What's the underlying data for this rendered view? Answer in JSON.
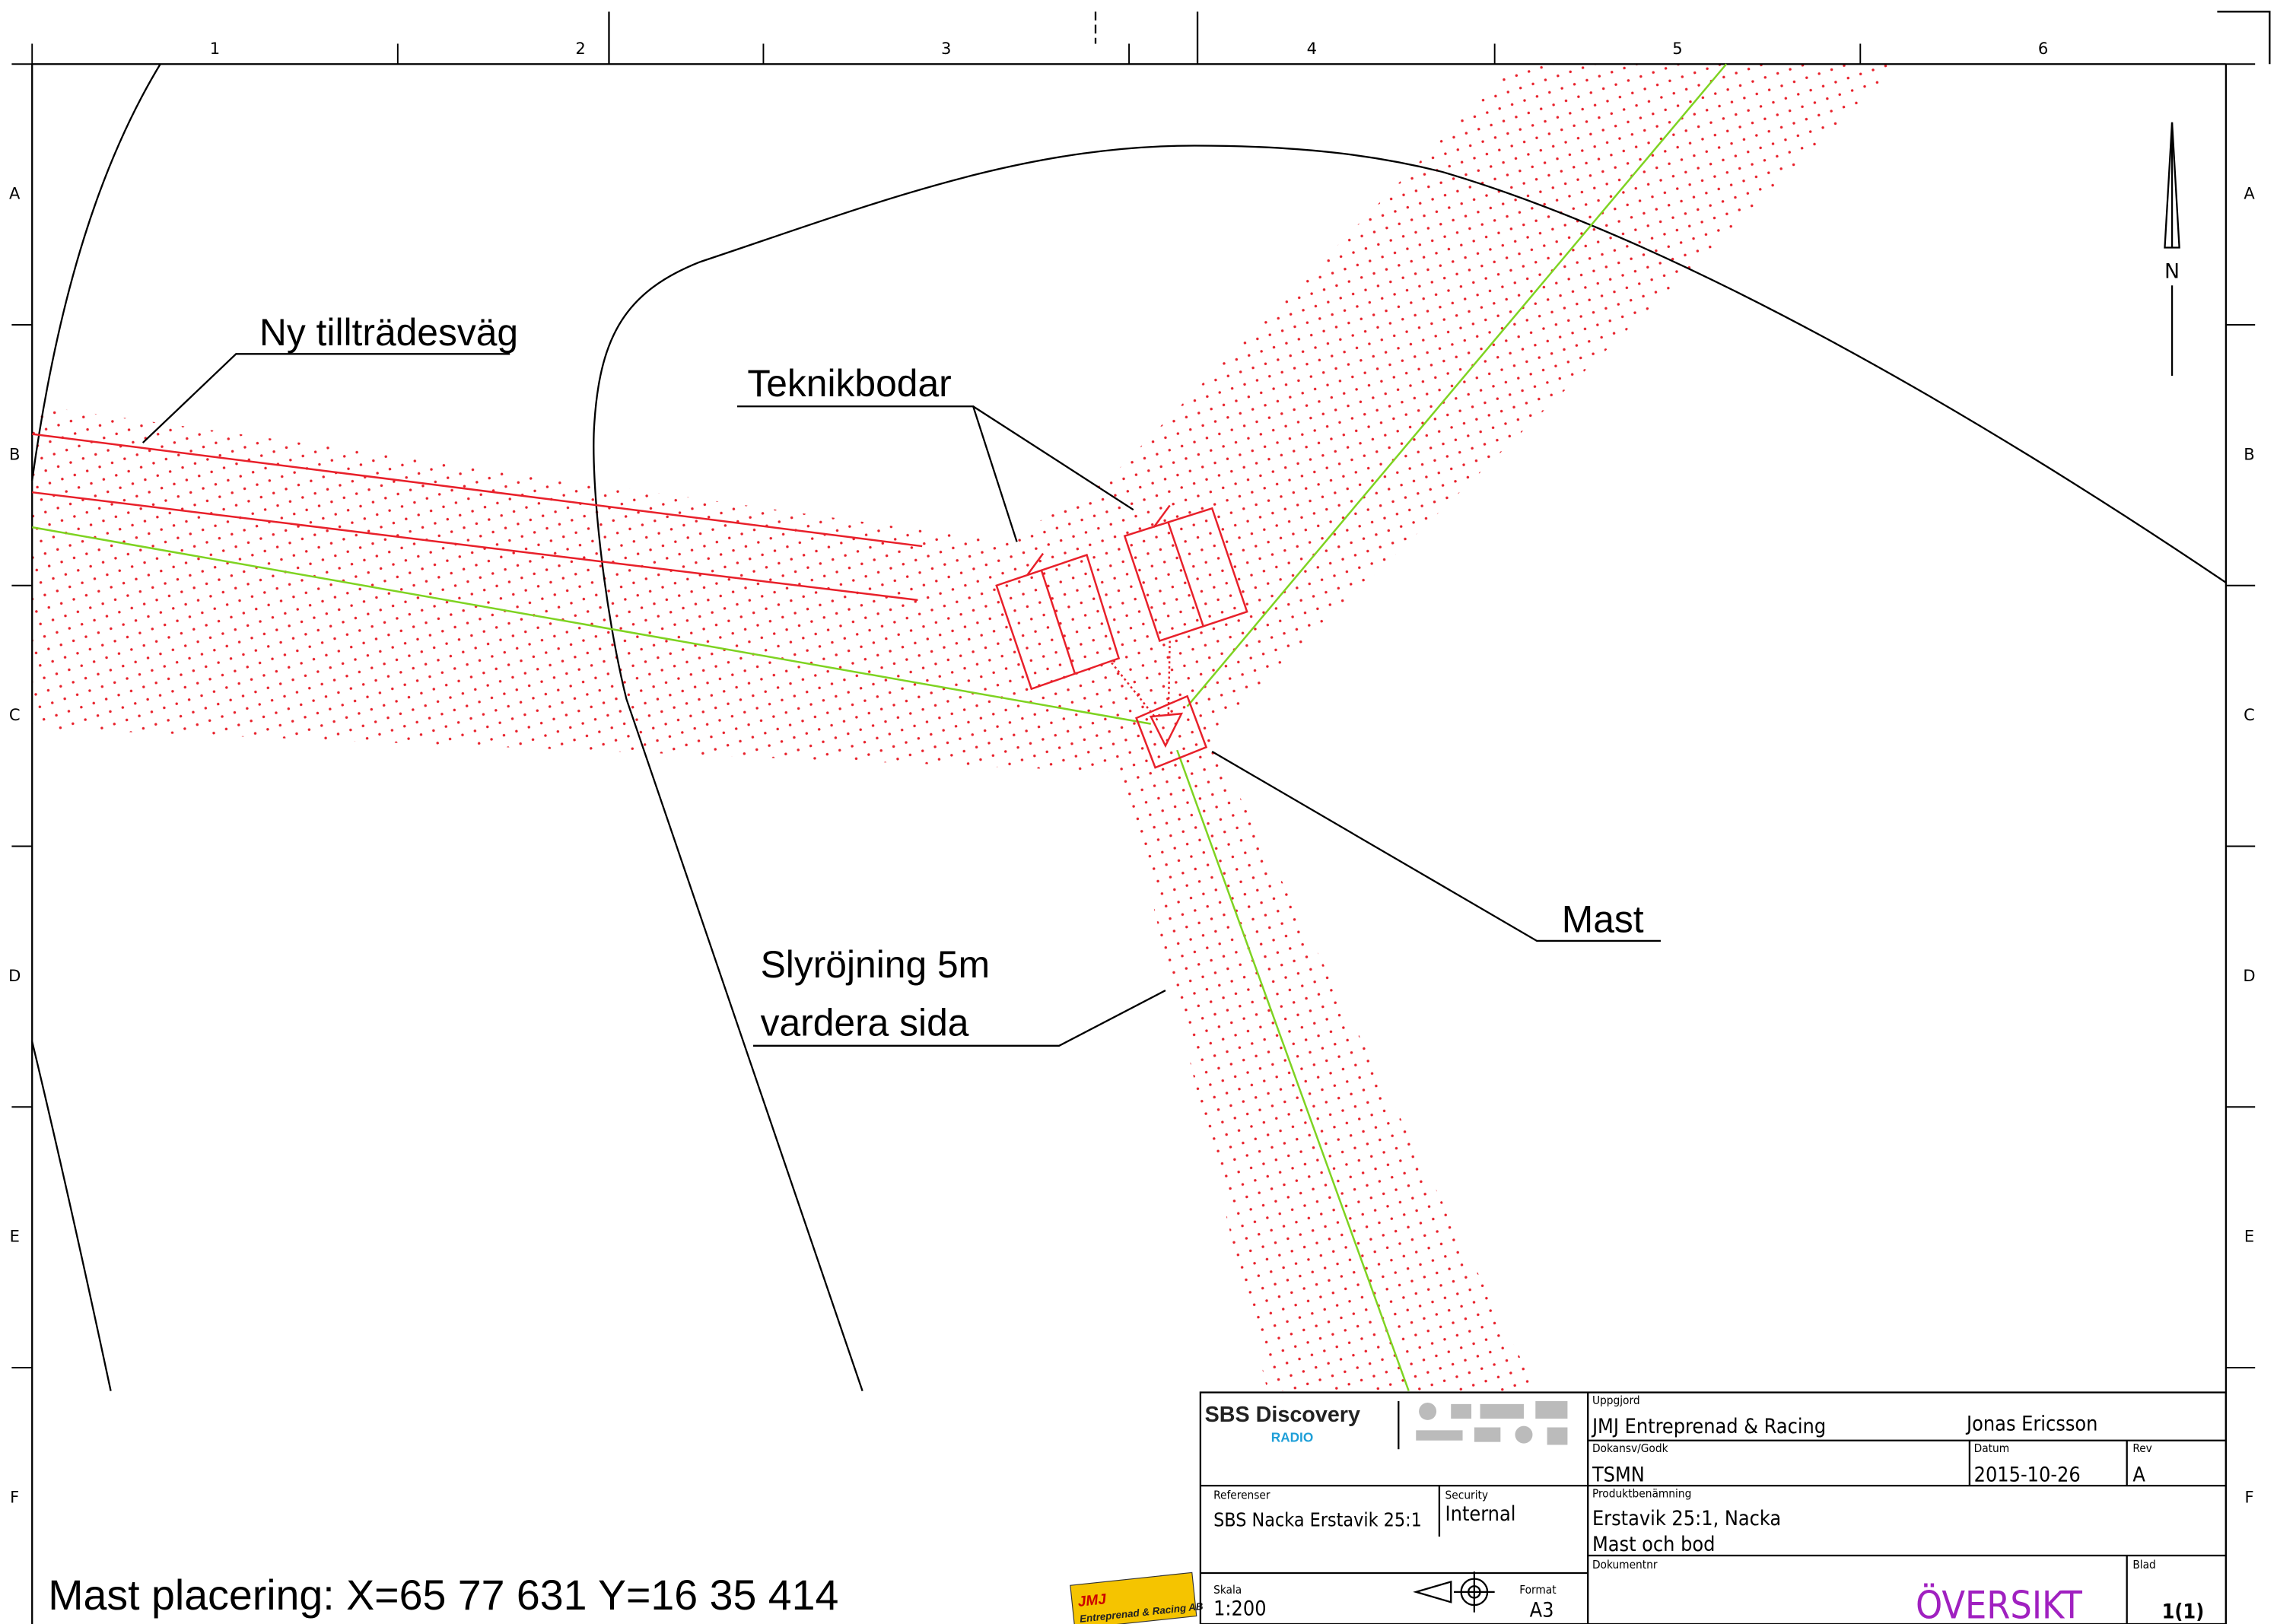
{
  "border": {
    "columns": [
      "1",
      "2",
      "3",
      "4",
      "5",
      "6"
    ],
    "rows": [
      "A",
      "B",
      "C",
      "D",
      "E",
      "F"
    ]
  },
  "north_arrow": "N",
  "annotations": {
    "access_road": "Ny tillträdesväg",
    "tech_sheds": "Teknikbodar",
    "mast": "Mast",
    "clearing": [
      "Slyröjning 5m",
      "vardera sida"
    ],
    "coordinates": "Mast placering: X=65 77 631  Y=16 35 414"
  },
  "logos": {
    "sbs": "SBS Discovery",
    "radio": "RADIO",
    "jmj": "JMJ",
    "jmj_sub": "Entreprenad & Racing AB"
  },
  "title_block": {
    "prepared_label": "Uppgjord",
    "prepared_by": "JMJ Entreprenad & Racing",
    "author": "Jonas Ericsson",
    "approved_label": "Dokansv/Godk",
    "approved": "TSMN",
    "date_label": "Datum",
    "date": "2015-10-26",
    "rev_label": "Rev",
    "rev": "A",
    "references_label": "Referenser",
    "references": "SBS Nacka Erstavik 25:1",
    "security_label": "Security",
    "security": "Internal",
    "product_label": "Produktbenämning",
    "product": [
      "Erstavik 25:1, Nacka",
      "Mast och bod"
    ],
    "document_label": "Dokumentnr",
    "document": "ÖVERSIKT",
    "sheet_label": "Blad",
    "sheet": "1(1)",
    "scale_label": "Skala",
    "scale": "1:200",
    "format_label": "Format",
    "format": "A3"
  }
}
